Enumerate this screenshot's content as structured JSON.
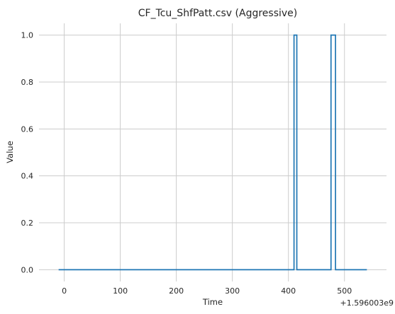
{
  "chart_data": {
    "type": "line",
    "title": "CF_Tcu_ShfPatt.csv (Aggressive)",
    "xlabel": "Time",
    "ylabel": "Value",
    "offset_label": "+1.596003e9",
    "xlim": [
      -45,
      575
    ],
    "ylim": [
      -0.05,
      1.05
    ],
    "xticks": [
      0,
      100,
      200,
      300,
      400,
      500
    ],
    "xtick_labels": [
      "0",
      "100",
      "200",
      "300",
      "400",
      "500"
    ],
    "yticks": [
      0.0,
      0.2,
      0.4,
      0.6,
      0.8,
      1.0
    ],
    "ytick_labels": [
      "0.0",
      "0.2",
      "0.4",
      "0.6",
      "0.8",
      "1.0"
    ],
    "grid": true,
    "line_style": "steps",
    "series": [
      {
        "color": "#1f77b4",
        "x": [
          -10,
          410,
          410,
          415,
          415,
          476,
          476,
          484,
          484,
          540
        ],
        "y": [
          0,
          0,
          1,
          1,
          0,
          0,
          1,
          1,
          0,
          0
        ]
      }
    ]
  }
}
